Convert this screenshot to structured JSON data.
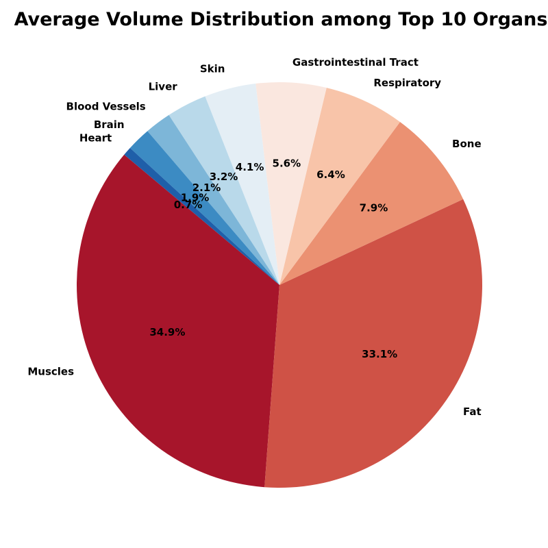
{
  "chart_data": {
    "type": "pie",
    "title": "Average Volume Distribution among Top 10 Organs",
    "categories": [
      "Muscles",
      "Fat",
      "Bone",
      "Respiratory",
      "Gastrointestinal Tract",
      "Skin",
      "Liver",
      "Blood Vessels",
      "Brain",
      "Heart"
    ],
    "values": [
      34.9,
      33.1,
      7.9,
      6.4,
      5.6,
      4.1,
      3.2,
      2.1,
      1.9,
      0.7
    ],
    "percent_labels": [
      "34.9%",
      "33.1%",
      "7.9%",
      "6.4%",
      "5.6%",
      "4.1%",
      "3.2%",
      "2.1%",
      "1.9%",
      "0.7%"
    ],
    "colors": [
      "#a7152b",
      "#cf5246",
      "#eb9172",
      "#f8c4a9",
      "#fae7df",
      "#e4eef5",
      "#b9d9ea",
      "#7db6d8",
      "#3c8bc3",
      "#1f5fa9"
    ],
    "start_angle_deg": 140,
    "direction": "counterclockwise",
    "legend": "none"
  }
}
